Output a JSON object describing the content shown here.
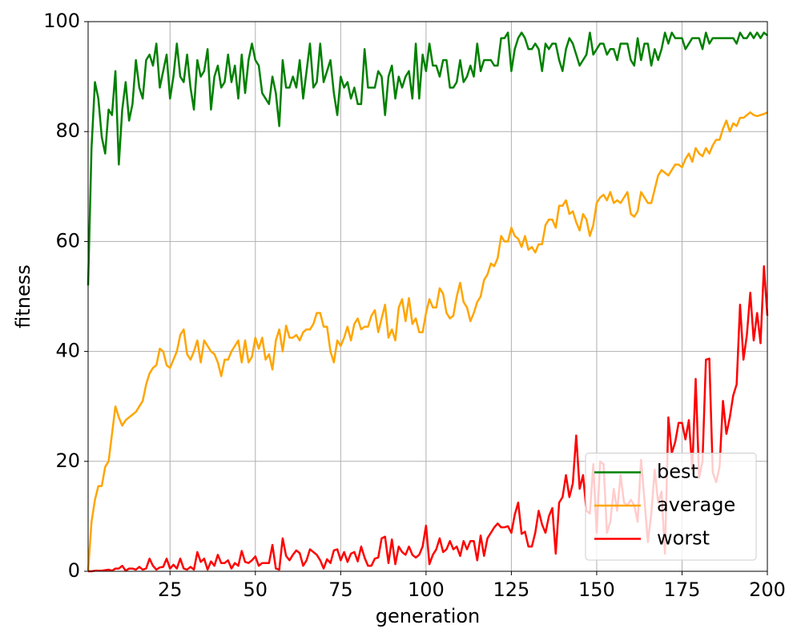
{
  "chart_data": {
    "type": "line",
    "x_label": "generation",
    "y_label": "fitness",
    "x": [
      1,
      2,
      3,
      4,
      5,
      6,
      7,
      8,
      9,
      10,
      11,
      12,
      13,
      14,
      15,
      16,
      17,
      18,
      19,
      20,
      21,
      22,
      23,
      24,
      25,
      26,
      27,
      28,
      29,
      30,
      31,
      32,
      33,
      34,
      35,
      36,
      37,
      38,
      39,
      40,
      41,
      42,
      43,
      44,
      45,
      46,
      47,
      48,
      49,
      50,
      51,
      52,
      53,
      54,
      55,
      56,
      57,
      58,
      59,
      60,
      61,
      62,
      63,
      64,
      65,
      66,
      67,
      68,
      69,
      70,
      71,
      72,
      73,
      74,
      75,
      76,
      77,
      78,
      79,
      80,
      81,
      82,
      83,
      84,
      85,
      86,
      87,
      88,
      89,
      90,
      91,
      92,
      93,
      94,
      95,
      96,
      97,
      98,
      99,
      100,
      101,
      102,
      103,
      104,
      105,
      106,
      107,
      108,
      109,
      110,
      111,
      112,
      113,
      114,
      115,
      116,
      117,
      118,
      119,
      120,
      121,
      122,
      123,
      124,
      125,
      126,
      127,
      128,
      129,
      130,
      131,
      132,
      133,
      134,
      135,
      136,
      137,
      138,
      139,
      140,
      141,
      142,
      143,
      144,
      145,
      146,
      147,
      148,
      149,
      150,
      151,
      152,
      153,
      154,
      155,
      156,
      157,
      158,
      159,
      160,
      161,
      162,
      163,
      164,
      165,
      166,
      167,
      168,
      169,
      170,
      171,
      172,
      173,
      174,
      175,
      176,
      177,
      178,
      179,
      180,
      181,
      182,
      183,
      184,
      185,
      186,
      187,
      188,
      189,
      190,
      191,
      192,
      193,
      194,
      195,
      196,
      197,
      198,
      199,
      200
    ],
    "series": [
      {
        "name": "best",
        "color": "#008000",
        "values": [
          52,
          77,
          89,
          86,
          79,
          76,
          84,
          83,
          91,
          74,
          84,
          89,
          82,
          85,
          93,
          88,
          86,
          93,
          94,
          92,
          96,
          88,
          91,
          94,
          86,
          90,
          96,
          90,
          89,
          94,
          88,
          84,
          93,
          90,
          91,
          95,
          84,
          90,
          92,
          88,
          89,
          94,
          89,
          92,
          86,
          94,
          87,
          93,
          96,
          93,
          92,
          87,
          86,
          85,
          90,
          87,
          81,
          93,
          88,
          88,
          90,
          88,
          93,
          86,
          91,
          96,
          88,
          89,
          96,
          89,
          91,
          93,
          87,
          83,
          90,
          88,
          89,
          86,
          88,
          85,
          85,
          95,
          88,
          88,
          88,
          91,
          90,
          83,
          90,
          92,
          86,
          90,
          88,
          90,
          91,
          86,
          96,
          86,
          94,
          91,
          96,
          92,
          92,
          90,
          93,
          93,
          88,
          88,
          89,
          93,
          89,
          90,
          92,
          90,
          96,
          91,
          93,
          93,
          93,
          92,
          92,
          97,
          97,
          98,
          91,
          95,
          97,
          98,
          97,
          95,
          95,
          96,
          95,
          91,
          96,
          95,
          96,
          96,
          93,
          91,
          95,
          97,
          96,
          94,
          92,
          93,
          94,
          98,
          94,
          95,
          96,
          96,
          94,
          95,
          95,
          93,
          96,
          96,
          96,
          93,
          92,
          97,
          93,
          96,
          96,
          92,
          95,
          93,
          95,
          98,
          96,
          98,
          97,
          97,
          97,
          95,
          96,
          97,
          97,
          97,
          95,
          98,
          96,
          97,
          97,
          97,
          97,
          97,
          97,
          97,
          96,
          98,
          97,
          97,
          98,
          97,
          98,
          97,
          98,
          97.5
        ]
      },
      {
        "name": "average",
        "color": "#ffa500",
        "values": [
          0,
          9,
          13,
          15.5,
          15.5,
          19,
          20,
          25,
          30,
          28,
          26.5,
          27.5,
          28,
          28.5,
          29,
          30,
          31,
          34,
          36,
          37,
          37.5,
          40.5,
          40,
          37.5,
          37,
          38.5,
          40,
          43,
          44,
          39.5,
          38.5,
          40,
          42,
          38,
          42,
          41,
          40,
          39.5,
          38,
          35.5,
          38.5,
          38.5,
          40,
          41,
          42,
          38,
          42,
          38,
          39,
          42.5,
          40.5,
          42.5,
          38.5,
          39.5,
          36.7,
          42,
          44,
          40,
          44.7,
          42.5,
          42.5,
          43,
          42,
          43.5,
          44,
          44,
          45,
          47,
          47,
          44.5,
          44.5,
          40,
          38,
          42,
          41,
          42.5,
          44.5,
          42,
          45,
          46,
          44,
          44.5,
          44.5,
          46.5,
          47.5,
          43.5,
          46,
          48.5,
          42.5,
          44,
          42,
          48,
          49.5,
          45.5,
          49.7,
          45,
          46,
          43.5,
          43.5,
          47,
          49.5,
          48,
          48,
          51.5,
          50.5,
          47,
          46,
          46.5,
          50,
          52.5,
          49,
          48,
          45.5,
          47,
          49,
          50,
          53,
          54,
          56,
          55.5,
          57,
          61,
          60,
          60,
          62.5,
          61,
          60.5,
          59,
          61,
          58.5,
          59,
          58,
          59.5,
          59.5,
          63,
          64,
          64,
          62.5,
          66.5,
          66.5,
          67.5,
          65,
          65.5,
          63.5,
          62,
          65,
          64,
          61,
          63,
          67,
          68,
          68.5,
          67.5,
          69,
          67,
          67.5,
          67,
          68,
          69,
          65,
          64.5,
          65.5,
          69,
          68,
          67,
          67,
          69.5,
          72,
          73,
          72.5,
          72,
          73,
          74,
          74,
          73.5,
          75,
          76,
          74.5,
          77,
          76,
          75.5,
          77,
          76,
          77.5,
          78.5,
          78.5,
          80.5,
          82,
          80,
          81.5,
          81,
          82.5,
          82.5,
          83,
          83.5,
          83,
          82.8,
          83,
          83.2,
          83.5
        ]
      },
      {
        "name": "worst",
        "color": "#ff0000",
        "values": [
          0,
          0,
          0.1,
          0.1,
          0.1,
          0.2,
          0.3,
          0.1,
          0.5,
          0.5,
          1,
          0.1,
          0.5,
          0.5,
          0.3,
          0.8,
          0.3,
          0.5,
          2.3,
          1,
          0.3,
          0.7,
          0.8,
          2.3,
          0.5,
          1.2,
          0.5,
          2.3,
          0.5,
          0.3,
          0.8,
          0.3,
          3.5,
          1.7,
          2.3,
          0.3,
          1.8,
          1,
          3,
          1.5,
          1.5,
          2,
          0.5,
          1.5,
          1,
          3.7,
          1.7,
          1.5,
          2,
          2.7,
          1,
          1.5,
          1.5,
          1.5,
          4.8,
          0.5,
          0.3,
          6,
          2.8,
          2,
          3,
          3.8,
          3.3,
          1,
          2,
          4,
          3.5,
          3,
          2,
          0.5,
          2.2,
          1.5,
          3.8,
          4,
          2,
          3.5,
          1.7,
          3.2,
          3.5,
          1.8,
          4.5,
          2.5,
          1,
          1,
          2.3,
          2.5,
          6,
          6.3,
          1.5,
          5.8,
          1.3,
          4.5,
          3.5,
          3,
          4.5,
          3,
          2.5,
          3,
          4.5,
          8.3,
          1.3,
          3,
          4,
          6,
          3.5,
          4,
          5.5,
          4,
          4.5,
          2.8,
          5.5,
          4,
          5.5,
          5.5,
          2,
          6.5,
          2.8,
          6,
          7,
          8,
          8.7,
          8,
          8,
          8.2,
          7,
          10.3,
          12.5,
          6.8,
          7.2,
          4.5,
          4.5,
          7,
          11,
          8.5,
          7,
          10,
          11.5,
          3.2,
          12.5,
          13.5,
          17.5,
          13.5,
          16,
          24.7,
          15,
          17.5,
          11,
          10.5,
          19.5,
          7,
          20,
          19.5,
          7,
          9,
          15,
          11,
          17.5,
          12.5,
          12,
          13,
          12,
          9,
          20.3,
          13,
          5.3,
          10.5,
          18.5,
          12.5,
          14.5,
          3.2,
          28,
          21.5,
          23.5,
          27,
          27,
          24,
          27.5,
          18.5,
          35,
          17,
          20,
          38.5,
          38.7,
          18,
          16.2,
          19,
          31,
          25,
          28,
          32,
          34,
          48.5,
          38.5,
          43,
          50.7,
          42,
          47,
          41.5,
          55.5,
          46.5
        ]
      }
    ],
    "xlim": [
      1,
      200
    ],
    "xticks": [
      25,
      50,
      75,
      100,
      125,
      150,
      175,
      200
    ],
    "ylim": [
      0,
      100
    ],
    "yticks": [
      0,
      20,
      40,
      60,
      80,
      100
    ],
    "grid": true,
    "legend": "lower right"
  }
}
